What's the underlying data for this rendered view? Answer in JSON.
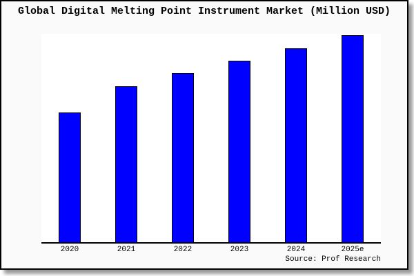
{
  "window": {
    "frame_border_color": "#000000",
    "frame_background": "#fafafa",
    "page_background": "#ffffff",
    "shadow_color": "#666666"
  },
  "chart_data": {
    "type": "bar",
    "title": "Global Digital Melting Point Instrument Market (Million USD)",
    "categories": [
      "2020",
      "2021",
      "2022",
      "2023",
      "2024",
      "2025e"
    ],
    "values": [
      188,
      226,
      245,
      263,
      281,
      300
    ],
    "value_note": "y-axis unlabeled in source image; values are relative bar heights in pixels (baseline 0 at x-axis)",
    "xlabel": "",
    "ylabel": "",
    "ylim": [
      0,
      302
    ],
    "grid": false,
    "legend": false,
    "bar_color": "#0000ff",
    "bar_border_color": "#000000",
    "plot_background": "#ffffff",
    "source_label": "Source: Prof Research"
  }
}
